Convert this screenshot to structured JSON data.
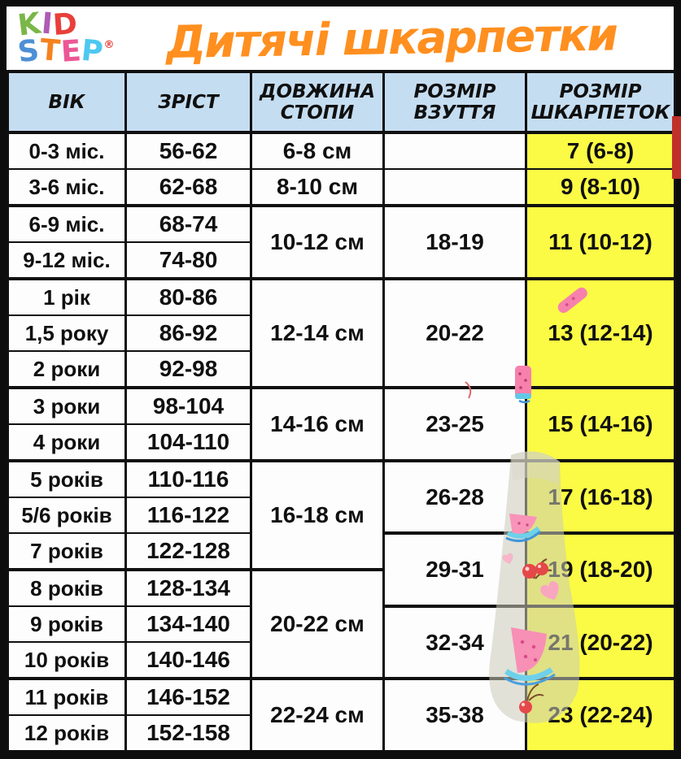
{
  "title": "Дитячі шкарпетки",
  "logo": {
    "word1": [
      {
        "char": "K",
        "color": "#7ab648"
      },
      {
        "char": "I",
        "color": "#b05bb3"
      },
      {
        "char": "D",
        "color": "#e8403a"
      }
    ],
    "word2": [
      {
        "char": "S",
        "color": "#4e8fd5"
      },
      {
        "char": "T",
        "color": "#f5821f"
      },
      {
        "char": "E",
        "color": "#ec5795"
      },
      {
        "char": "P",
        "color": "#4ec8f0"
      }
    ],
    "registered": "®",
    "registered_color": "#e8403a"
  },
  "header": {
    "age": "ВІК",
    "height": "ЗРІСТ",
    "foot1": "ДОВЖИНА",
    "foot2": "СТОПИ",
    "shoe1": "РОЗМІР",
    "shoe2": "ВЗУТТЯ",
    "sock1": "РОЗМІР",
    "sock2": "ШКАРПЕТОК"
  },
  "colors": {
    "header_bg": "#c5ddf1",
    "highlight": "#fbfb45",
    "title_orange": "#ff8f1f",
    "border": "#101010",
    "accent_red_edge": "#c2302a"
  },
  "decorations": [
    "sock-watermark",
    "watermelon-slice-sticker",
    "watermelon-popsicle-sticker",
    "cherries-sticker",
    "heart-sticker"
  ],
  "chart_data": {
    "type": "table",
    "title": "Дитячі шкарпетки",
    "columns": [
      "ВІК",
      "ЗРІСТ",
      "ДОВЖИНА СТОПИ",
      "РОЗМІР ВЗУТТЯ",
      "РОЗМІР ШКАРПЕТОК"
    ],
    "rows": [
      {
        "age": "0-3 міс.",
        "height": "56-62",
        "foot": "6-8 см",
        "shoe": "",
        "sock": "7 (6-8)"
      },
      {
        "age": "3-6 міс.",
        "height": "62-68",
        "foot": "8-10 см",
        "shoe": "",
        "sock": "9 (8-10)"
      },
      {
        "age": "6-9 міс.",
        "height": "68-74",
        "foot": "10-12 см",
        "shoe": "18-19",
        "sock": "11 (10-12)"
      },
      {
        "age": "9-12 міс.",
        "height": "74-80"
      },
      {
        "age": "1 рік",
        "height": "80-86",
        "foot": "12-14 см",
        "shoe": "20-22",
        "sock": "13 (12-14)"
      },
      {
        "age": "1,5 року",
        "height": "86-92"
      },
      {
        "age": "2 роки",
        "height": "92-98"
      },
      {
        "age": "3 роки",
        "height": "98-104",
        "foot": "14-16 см",
        "shoe": "23-25",
        "sock": "15 (14-16)"
      },
      {
        "age": "4 роки",
        "height": "104-110"
      },
      {
        "age": "5 років",
        "height": "110-116",
        "foot": "16-18 см",
        "shoe": "26-28",
        "sock": "17 (16-18)"
      },
      {
        "age": "5/6 років",
        "height": "116-122"
      },
      {
        "age": "7 років",
        "height": "122-128",
        "shoe": "29-31",
        "sock": "19 (18-20)"
      },
      {
        "age": "8 років",
        "height": "128-134",
        "foot": "20-22 см"
      },
      {
        "age": "9 років",
        "height": "134-140",
        "shoe": "32-34",
        "sock": "21 (20-22)"
      },
      {
        "age": "10 років",
        "height": "140-146"
      },
      {
        "age": "11 років",
        "height": "146-152",
        "foot": "22-24 см",
        "shoe": "35-38",
        "sock": "23 (22-24)"
      },
      {
        "age": "12 років",
        "height": "152-158"
      }
    ]
  }
}
